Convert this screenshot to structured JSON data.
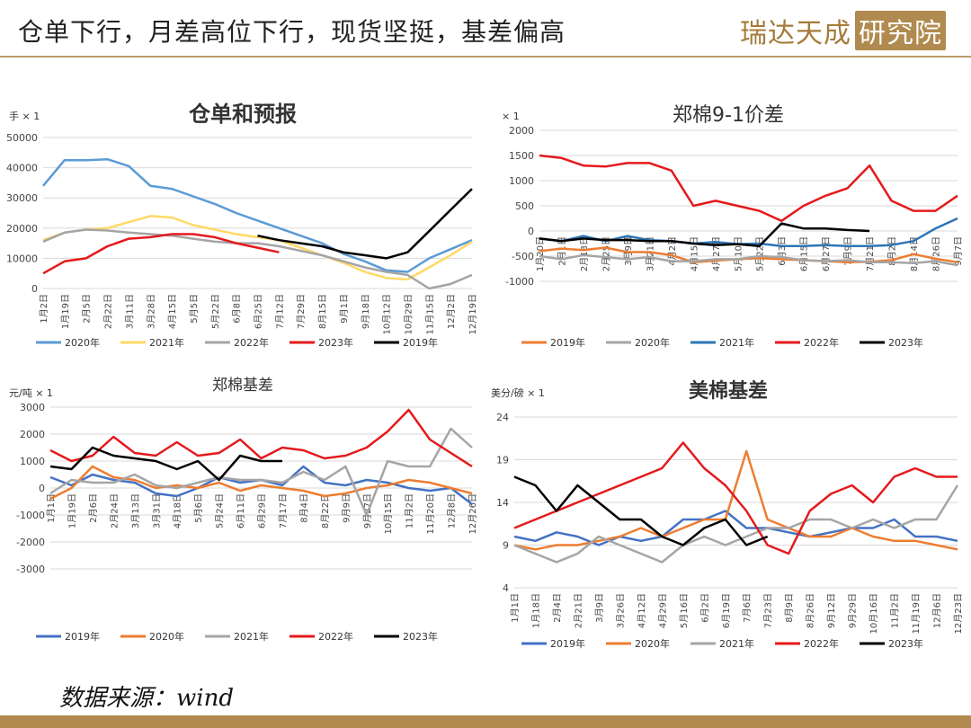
{
  "header": {
    "title": "仓单下行，月差高位下行，现货坚挺，基差偏高",
    "logo_text": "瑞达天成",
    "logo_box": "研究院"
  },
  "footer": {
    "source": "数据来源：wind"
  },
  "chart_data": [
    {
      "id": "c1",
      "type": "line",
      "title": "仓单和预报",
      "unit": "手 × 1",
      "ylim": [
        0,
        50000
      ],
      "yticks": [
        0,
        10000,
        20000,
        30000,
        40000,
        50000
      ],
      "categories": [
        "1月2日",
        "1月19日",
        "2月5日",
        "2月22日",
        "3月11日",
        "3月28日",
        "4月15日",
        "5月5日",
        "5月22日",
        "6月8日",
        "6月25日",
        "7月12日",
        "7月29日",
        "8月15日",
        "9月1日",
        "9月18日",
        "10月12日",
        "10月29日",
        "11月15日",
        "12月2日",
        "12月19日"
      ],
      "series": [
        {
          "name": "2020年",
          "color": "#5b9bd5",
          "values": [
            34000,
            42500,
            42500,
            42800,
            40500,
            34000,
            33000,
            30500,
            28000,
            25000,
            22500,
            20000,
            17500,
            15000,
            11500,
            9000,
            6000,
            5500,
            10000,
            13000,
            16000
          ]
        },
        {
          "name": "2021年",
          "color": "#ffd966",
          "values": [
            16000,
            18500,
            19500,
            20000,
            22000,
            24000,
            23500,
            21000,
            19500,
            18000,
            17000,
            16000,
            13500,
            11000,
            8500,
            5500,
            3500,
            3000,
            7000,
            11000,
            15500
          ]
        },
        {
          "name": "2022年",
          "color": "#a5a5a5",
          "values": [
            15500,
            18500,
            19500,
            19200,
            18500,
            18000,
            17500,
            16500,
            15500,
            15000,
            15000,
            14000,
            12500,
            11000,
            9000,
            7000,
            5500,
            4500,
            0,
            1500,
            4500
          ]
        },
        {
          "name": "2023年",
          "color": "#e41a1c",
          "values": [
            5000,
            9000,
            10000,
            14000,
            16500,
            17000,
            18000,
            18000,
            17000,
            15000,
            13500,
            12000,
            null,
            null,
            null,
            null,
            null,
            null,
            null,
            null,
            null
          ]
        },
        {
          "name": "2019年",
          "color": "#000000",
          "values": [
            null,
            null,
            null,
            null,
            null,
            null,
            null,
            null,
            null,
            null,
            17500,
            16000,
            15000,
            14000,
            12000,
            11000,
            10000,
            12000,
            19000,
            26000,
            33000
          ]
        }
      ]
    },
    {
      "id": "c2",
      "type": "line",
      "title": "郑棉9-1价差",
      "unit": "× 1",
      "ylim": [
        -1000,
        2000
      ],
      "yticks": [
        -1000,
        -500,
        0,
        500,
        1000,
        1500,
        2000
      ],
      "categories": [
        "1月20日",
        "2月1日",
        "2月13日",
        "2月25日",
        "3月9日",
        "3月21日",
        "4月2日",
        "4月15日",
        "4月27日",
        "5月10日",
        "5月22日",
        "6月3日",
        "6月15日",
        "6月27日",
        "7月9日",
        "7月21日",
        "8月2日",
        "8月14日",
        "8月26日",
        "9月7日"
      ],
      "series": [
        {
          "name": "2019年",
          "color": "#ed7d31",
          "values": [
            -400,
            -350,
            -380,
            -330,
            -420,
            -420,
            -480,
            -620,
            -590,
            -560,
            -540,
            -560,
            -580,
            -600,
            -620,
            -610,
            -580,
            -460,
            -550,
            -620
          ]
        },
        {
          "name": "2020年",
          "color": "#a5a5a5",
          "values": [
            -500,
            -560,
            -480,
            -520,
            -560,
            -520,
            -600,
            -600,
            -560,
            -560,
            -500,
            -520,
            -580,
            -600,
            -580,
            -620,
            -620,
            -640,
            -600,
            -680
          ]
        },
        {
          "name": "2021年",
          "color": "#2e75b6",
          "values": [
            -150,
            -200,
            -100,
            -200,
            -100,
            -180,
            -200,
            -250,
            -220,
            -260,
            -250,
            -300,
            -300,
            -280,
            -300,
            -300,
            -280,
            -200,
            50,
            250
          ]
        },
        {
          "name": "2022年",
          "color": "#e41a1c",
          "values": [
            1500,
            1450,
            1300,
            1280,
            1350,
            1350,
            1200,
            500,
            600,
            500,
            400,
            200,
            500,
            700,
            850,
            1300,
            600,
            400,
            400,
            700
          ]
        },
        {
          "name": "2023年",
          "color": "#000000",
          "values": [
            -150,
            -200,
            -150,
            -180,
            -180,
            -200,
            -200,
            -250,
            -280,
            -260,
            -300,
            150,
            50,
            50,
            20,
            0,
            null,
            null,
            null,
            null
          ]
        }
      ]
    },
    {
      "id": "c3",
      "type": "line",
      "title": "郑棉基差",
      "unit": "元/吨 × 1",
      "ylim": [
        -3000,
        3000
      ],
      "yticks": [
        -3000,
        -2000,
        -1000,
        0,
        1000,
        2000,
        3000
      ],
      "categories": [
        "1月1日",
        "1月19日",
        "2月6日",
        "2月24日",
        "3月13日",
        "3月31日",
        "4月18日",
        "5月6日",
        "5月24日",
        "6月11日",
        "6月29日",
        "7月17日",
        "8月4日",
        "8月22日",
        "9月9日",
        "9月27日",
        "10月15日",
        "11月2日",
        "11月20日",
        "12月8日",
        "12月26日"
      ],
      "series": [
        {
          "name": "2019年",
          "color": "#4472c4",
          "values": [
            400,
            100,
            500,
            300,
            200,
            -200,
            -300,
            0,
            400,
            200,
            300,
            100,
            800,
            200,
            100,
            300,
            200,
            0,
            -100,
            0,
            -600
          ]
        },
        {
          "name": "2020年",
          "color": "#ed7d31",
          "values": [
            -400,
            0,
            800,
            400,
            300,
            0,
            100,
            0,
            200,
            -100,
            100,
            0,
            -100,
            -300,
            -200,
            0,
            100,
            300,
            200,
            0,
            -200
          ]
        },
        {
          "name": "2021年",
          "color": "#a5a5a5",
          "values": [
            -200,
            300,
            200,
            200,
            500,
            100,
            0,
            200,
            400,
            300,
            300,
            200,
            600,
            300,
            800,
            -1000,
            1000,
            800,
            800,
            2200,
            1500
          ]
        },
        {
          "name": "2022年",
          "color": "#e41a1c",
          "values": [
            1400,
            1000,
            1200,
            1900,
            1300,
            1200,
            1700,
            1200,
            1300,
            1800,
            1100,
            1500,
            1400,
            1100,
            1200,
            1500,
            2100,
            2900,
            1800,
            1300,
            800
          ]
        },
        {
          "name": "2023年",
          "color": "#000000",
          "values": [
            800,
            700,
            1500,
            1200,
            1100,
            1000,
            700,
            1000,
            300,
            1200,
            1000,
            1000,
            null,
            null,
            null,
            null,
            null,
            null,
            null,
            null,
            null
          ]
        }
      ]
    },
    {
      "id": "c4",
      "type": "line",
      "title": "美棉基差",
      "unit": "美分/磅 × 1",
      "ylim": [
        4,
        24
      ],
      "yticks": [
        4,
        9,
        14,
        19,
        24
      ],
      "categories": [
        "1月1日",
        "1月18日",
        "2月4日",
        "2月21日",
        "3月9日",
        "3月26日",
        "4月12日",
        "4月29日",
        "5月16日",
        "6月2日",
        "6月19日",
        "7月6日",
        "7月23日",
        "8月9日",
        "8月26日",
        "9月12日",
        "9月29日",
        "10月16日",
        "11月2日",
        "11月19日",
        "12月6日",
        "12月23日"
      ],
      "series": [
        {
          "name": "2019年",
          "color": "#4472c4",
          "values": [
            10,
            9.5,
            10.5,
            10,
            9,
            10,
            9.5,
            10,
            12,
            12,
            13,
            11,
            11,
            10.5,
            10,
            10.5,
            11,
            11,
            12,
            10,
            10,
            9.5
          ]
        },
        {
          "name": "2020年",
          "color": "#ed7d31",
          "values": [
            9,
            8.5,
            9,
            9,
            9.5,
            10,
            11,
            10,
            11,
            12,
            12,
            20,
            12,
            11,
            10,
            10,
            11,
            10,
            9.5,
            9.5,
            9,
            8.5
          ]
        },
        {
          "name": "2021年",
          "color": "#a5a5a5",
          "values": [
            9,
            8,
            7,
            8,
            10,
            9,
            8,
            7,
            9,
            10,
            9,
            10,
            11,
            11,
            12,
            12,
            11,
            12,
            11,
            12,
            12,
            16
          ]
        },
        {
          "name": "2022年",
          "color": "#e41a1c",
          "values": [
            11,
            12,
            13,
            14,
            15,
            16,
            17,
            18,
            21,
            18,
            16,
            13,
            9,
            8,
            13,
            15,
            16,
            14,
            17,
            18,
            17,
            17
          ]
        },
        {
          "name": "2023年",
          "color": "#000000",
          "values": [
            17,
            16,
            13,
            16,
            14,
            12,
            12,
            10,
            9,
            11,
            12,
            9,
            10,
            null,
            null,
            null,
            null,
            null,
            null,
            null,
            null,
            null
          ]
        }
      ]
    }
  ]
}
